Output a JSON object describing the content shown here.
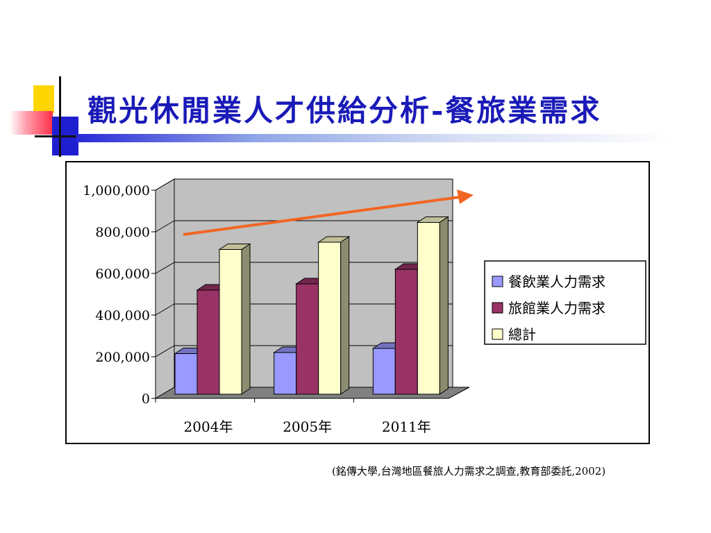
{
  "slide": {
    "title": "觀光休閒業人才供給分析-餐旅業需求",
    "source_note": "(銘傳大學,台灣地區餐旅人力需求之調查,教育部委託,2002)"
  },
  "chart_data": {
    "type": "bar",
    "categories": [
      "2004年",
      "2005年",
      "2011年"
    ],
    "series": [
      {
        "name": "餐飲業人力需求",
        "values": [
          195000,
          200000,
          220000
        ],
        "color": "#9999ff"
      },
      {
        "name": "旅館業人力需求",
        "values": [
          500000,
          530000,
          600000
        ],
        "color": "#993366"
      },
      {
        "name": "總計",
        "values": [
          695000,
          730000,
          825000
        ],
        "color": "#ffffcc"
      }
    ],
    "yticks": [
      {
        "value": 0,
        "label": "0"
      },
      {
        "value": 200000,
        "label": "200,000"
      },
      {
        "value": 400000,
        "label": "400,000"
      },
      {
        "value": 600000,
        "label": "600,000"
      },
      {
        "value": 800000,
        "label": "800,000"
      },
      {
        "value": 1000000,
        "label": "1,000,000"
      }
    ],
    "ylim": [
      0,
      1000000
    ],
    "grid": true,
    "legend_position": "right",
    "trend_arrow_color": "#f26522",
    "wall_color": "#c0c0c0",
    "floor_color": "#808080"
  }
}
